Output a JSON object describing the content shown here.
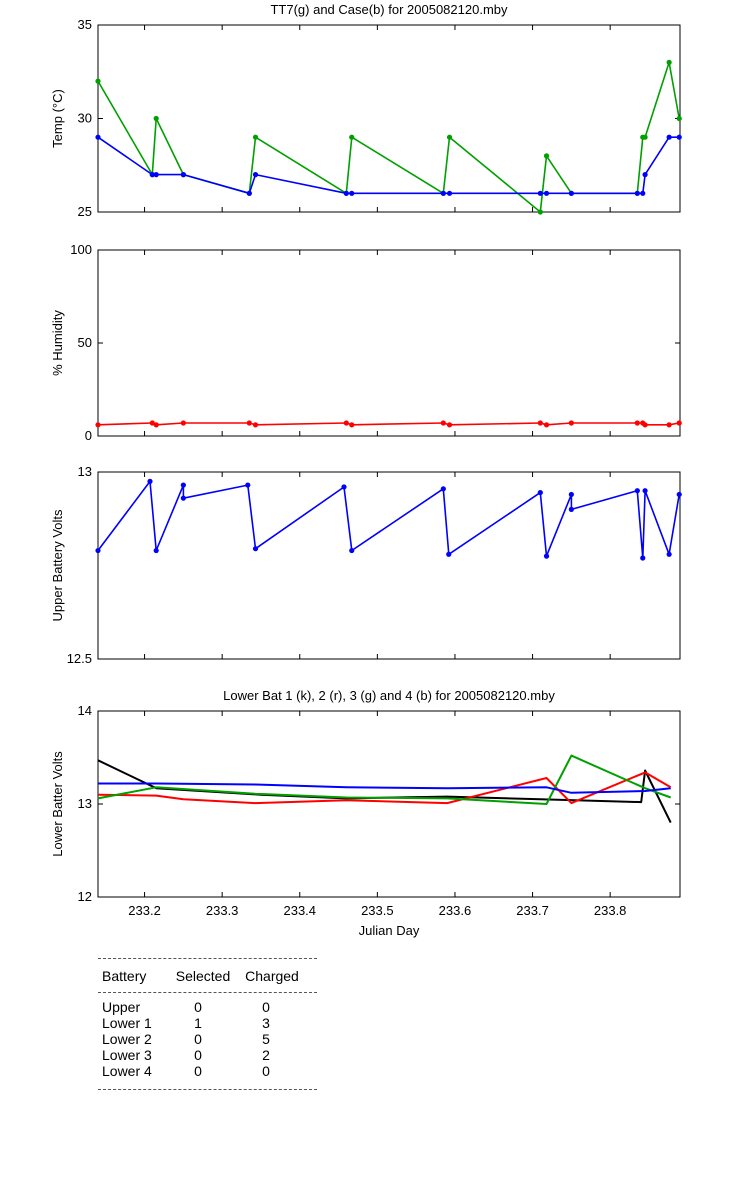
{
  "chart_data": [
    {
      "type": "line",
      "title": "TT7(g) and Case(b) for 2005082120.mby",
      "xlabel": "",
      "ylabel": "Temp  (°C)",
      "xlim": [
        233.14,
        233.89
      ],
      "ylim": [
        25,
        35
      ],
      "yticks": [
        25,
        30,
        35
      ],
      "series": [
        {
          "color": "#00a000",
          "marker": "*",
          "x": [
            233.14,
            233.21,
            233.215,
            233.25,
            233.335,
            233.343,
            233.46,
            233.467,
            233.585,
            233.593,
            233.71,
            233.718,
            233.75,
            233.835,
            233.842,
            233.845,
            233.876,
            233.889
          ],
          "y": [
            32,
            27,
            30,
            27,
            26,
            29,
            26,
            29,
            26,
            29,
            25,
            28,
            26,
            26,
            29,
            29,
            33,
            30
          ]
        },
        {
          "color": "#0000ff",
          "marker": "*",
          "x": [
            233.14,
            233.21,
            233.215,
            233.25,
            233.335,
            233.343,
            233.46,
            233.467,
            233.585,
            233.593,
            233.71,
            233.718,
            233.75,
            233.835,
            233.842,
            233.845,
            233.876,
            233.889
          ],
          "y": [
            29,
            27,
            27,
            27,
            26,
            27,
            26,
            26,
            26,
            26,
            26,
            26,
            26,
            26,
            26,
            27,
            29,
            29
          ]
        }
      ]
    },
    {
      "type": "line",
      "title": "",
      "xlabel": "",
      "ylabel": "% Humidity",
      "xlim": [
        233.14,
        233.89
      ],
      "ylim": [
        0,
        100
      ],
      "yticks": [
        0,
        50,
        100
      ],
      "series": [
        {
          "color": "#ff0000",
          "marker": "*",
          "x": [
            233.14,
            233.21,
            233.215,
            233.25,
            233.335,
            233.343,
            233.46,
            233.467,
            233.585,
            233.593,
            233.71,
            233.718,
            233.75,
            233.835,
            233.842,
            233.845,
            233.876,
            233.889
          ],
          "y": [
            6,
            7,
            6,
            7,
            7,
            6,
            7,
            6,
            7,
            6,
            7,
            6,
            7,
            7,
            7,
            6,
            6,
            7
          ]
        }
      ]
    },
    {
      "type": "line",
      "title": "",
      "xlabel": "",
      "ylabel": "Upper Battery Volts",
      "xlim": [
        233.14,
        233.89
      ],
      "ylim": [
        12.5,
        13
      ],
      "yticks": [
        12.5,
        13
      ],
      "series": [
        {
          "color": "#0000ff",
          "marker": "*",
          "x": [
            233.14,
            233.207,
            233.215,
            233.25,
            233.25,
            233.333,
            233.343,
            233.457,
            233.467,
            233.585,
            233.592,
            233.71,
            233.718,
            233.75,
            233.75,
            233.835,
            233.842,
            233.845,
            233.876,
            233.889
          ],
          "y": [
            12.79,
            12.975,
            12.79,
            12.965,
            12.93,
            12.965,
            12.795,
            12.96,
            12.79,
            12.955,
            12.78,
            12.945,
            12.775,
            12.94,
            12.9,
            12.95,
            12.77,
            12.95,
            12.78,
            12.94
          ]
        }
      ]
    },
    {
      "type": "line",
      "title": "Lower Bat 1 (k), 2 (r), 3 (g) and 4 (b) for 2005082120.mby",
      "xlabel": "Julian Day",
      "ylabel": "Lower Batter Volts",
      "xlim": [
        233.14,
        233.89
      ],
      "ylim": [
        12,
        14
      ],
      "yticks": [
        12,
        13,
        14
      ],
      "xticks": [
        233.2,
        233.3,
        233.4,
        233.5,
        233.6,
        233.7,
        233.8
      ],
      "xticklabels": [
        "233.2",
        "233.3",
        "233.4",
        "233.5",
        "233.6",
        "233.7",
        "233.8"
      ],
      "series": [
        {
          "color": "#000000",
          "marker": "",
          "x": [
            233.14,
            233.215,
            233.35,
            233.46,
            233.59,
            233.71,
            233.84,
            233.845,
            233.878
          ],
          "y": [
            13.47,
            13.17,
            13.1,
            13.06,
            13.08,
            13.05,
            13.02,
            13.36,
            12.8
          ]
        },
        {
          "color": "#ff0000",
          "marker": "",
          "x": [
            233.14,
            233.215,
            233.25,
            233.343,
            233.46,
            233.59,
            233.718,
            233.75,
            233.845,
            233.878
          ],
          "y": [
            13.1,
            13.09,
            13.05,
            13.01,
            13.04,
            13.01,
            13.28,
            13.01,
            13.34,
            13.18
          ]
        },
        {
          "color": "#00a000",
          "marker": "",
          "x": [
            233.14,
            233.215,
            233.343,
            233.46,
            233.59,
            233.718,
            233.75,
            233.845,
            233.878
          ],
          "y": [
            13.06,
            13.18,
            13.11,
            13.07,
            13.06,
            13.0,
            13.52,
            13.17,
            13.07
          ]
        },
        {
          "color": "#0000ff",
          "marker": "",
          "x": [
            233.14,
            233.215,
            233.343,
            233.46,
            233.59,
            233.718,
            233.75,
            233.845,
            233.878
          ],
          "y": [
            13.22,
            13.22,
            13.21,
            13.18,
            13.17,
            13.18,
            13.12,
            13.14,
            13.17
          ]
        }
      ]
    }
  ],
  "summary": {
    "headers": [
      "Battery",
      "Selected",
      "Charged"
    ],
    "rows": [
      [
        "Upper",
        "0",
        "0"
      ],
      [
        "Lower 1",
        "1",
        "3"
      ],
      [
        "Lower 2",
        "0",
        "5"
      ],
      [
        "Lower 3",
        "0",
        "2"
      ],
      [
        "Lower 4",
        "0",
        "0"
      ]
    ]
  }
}
